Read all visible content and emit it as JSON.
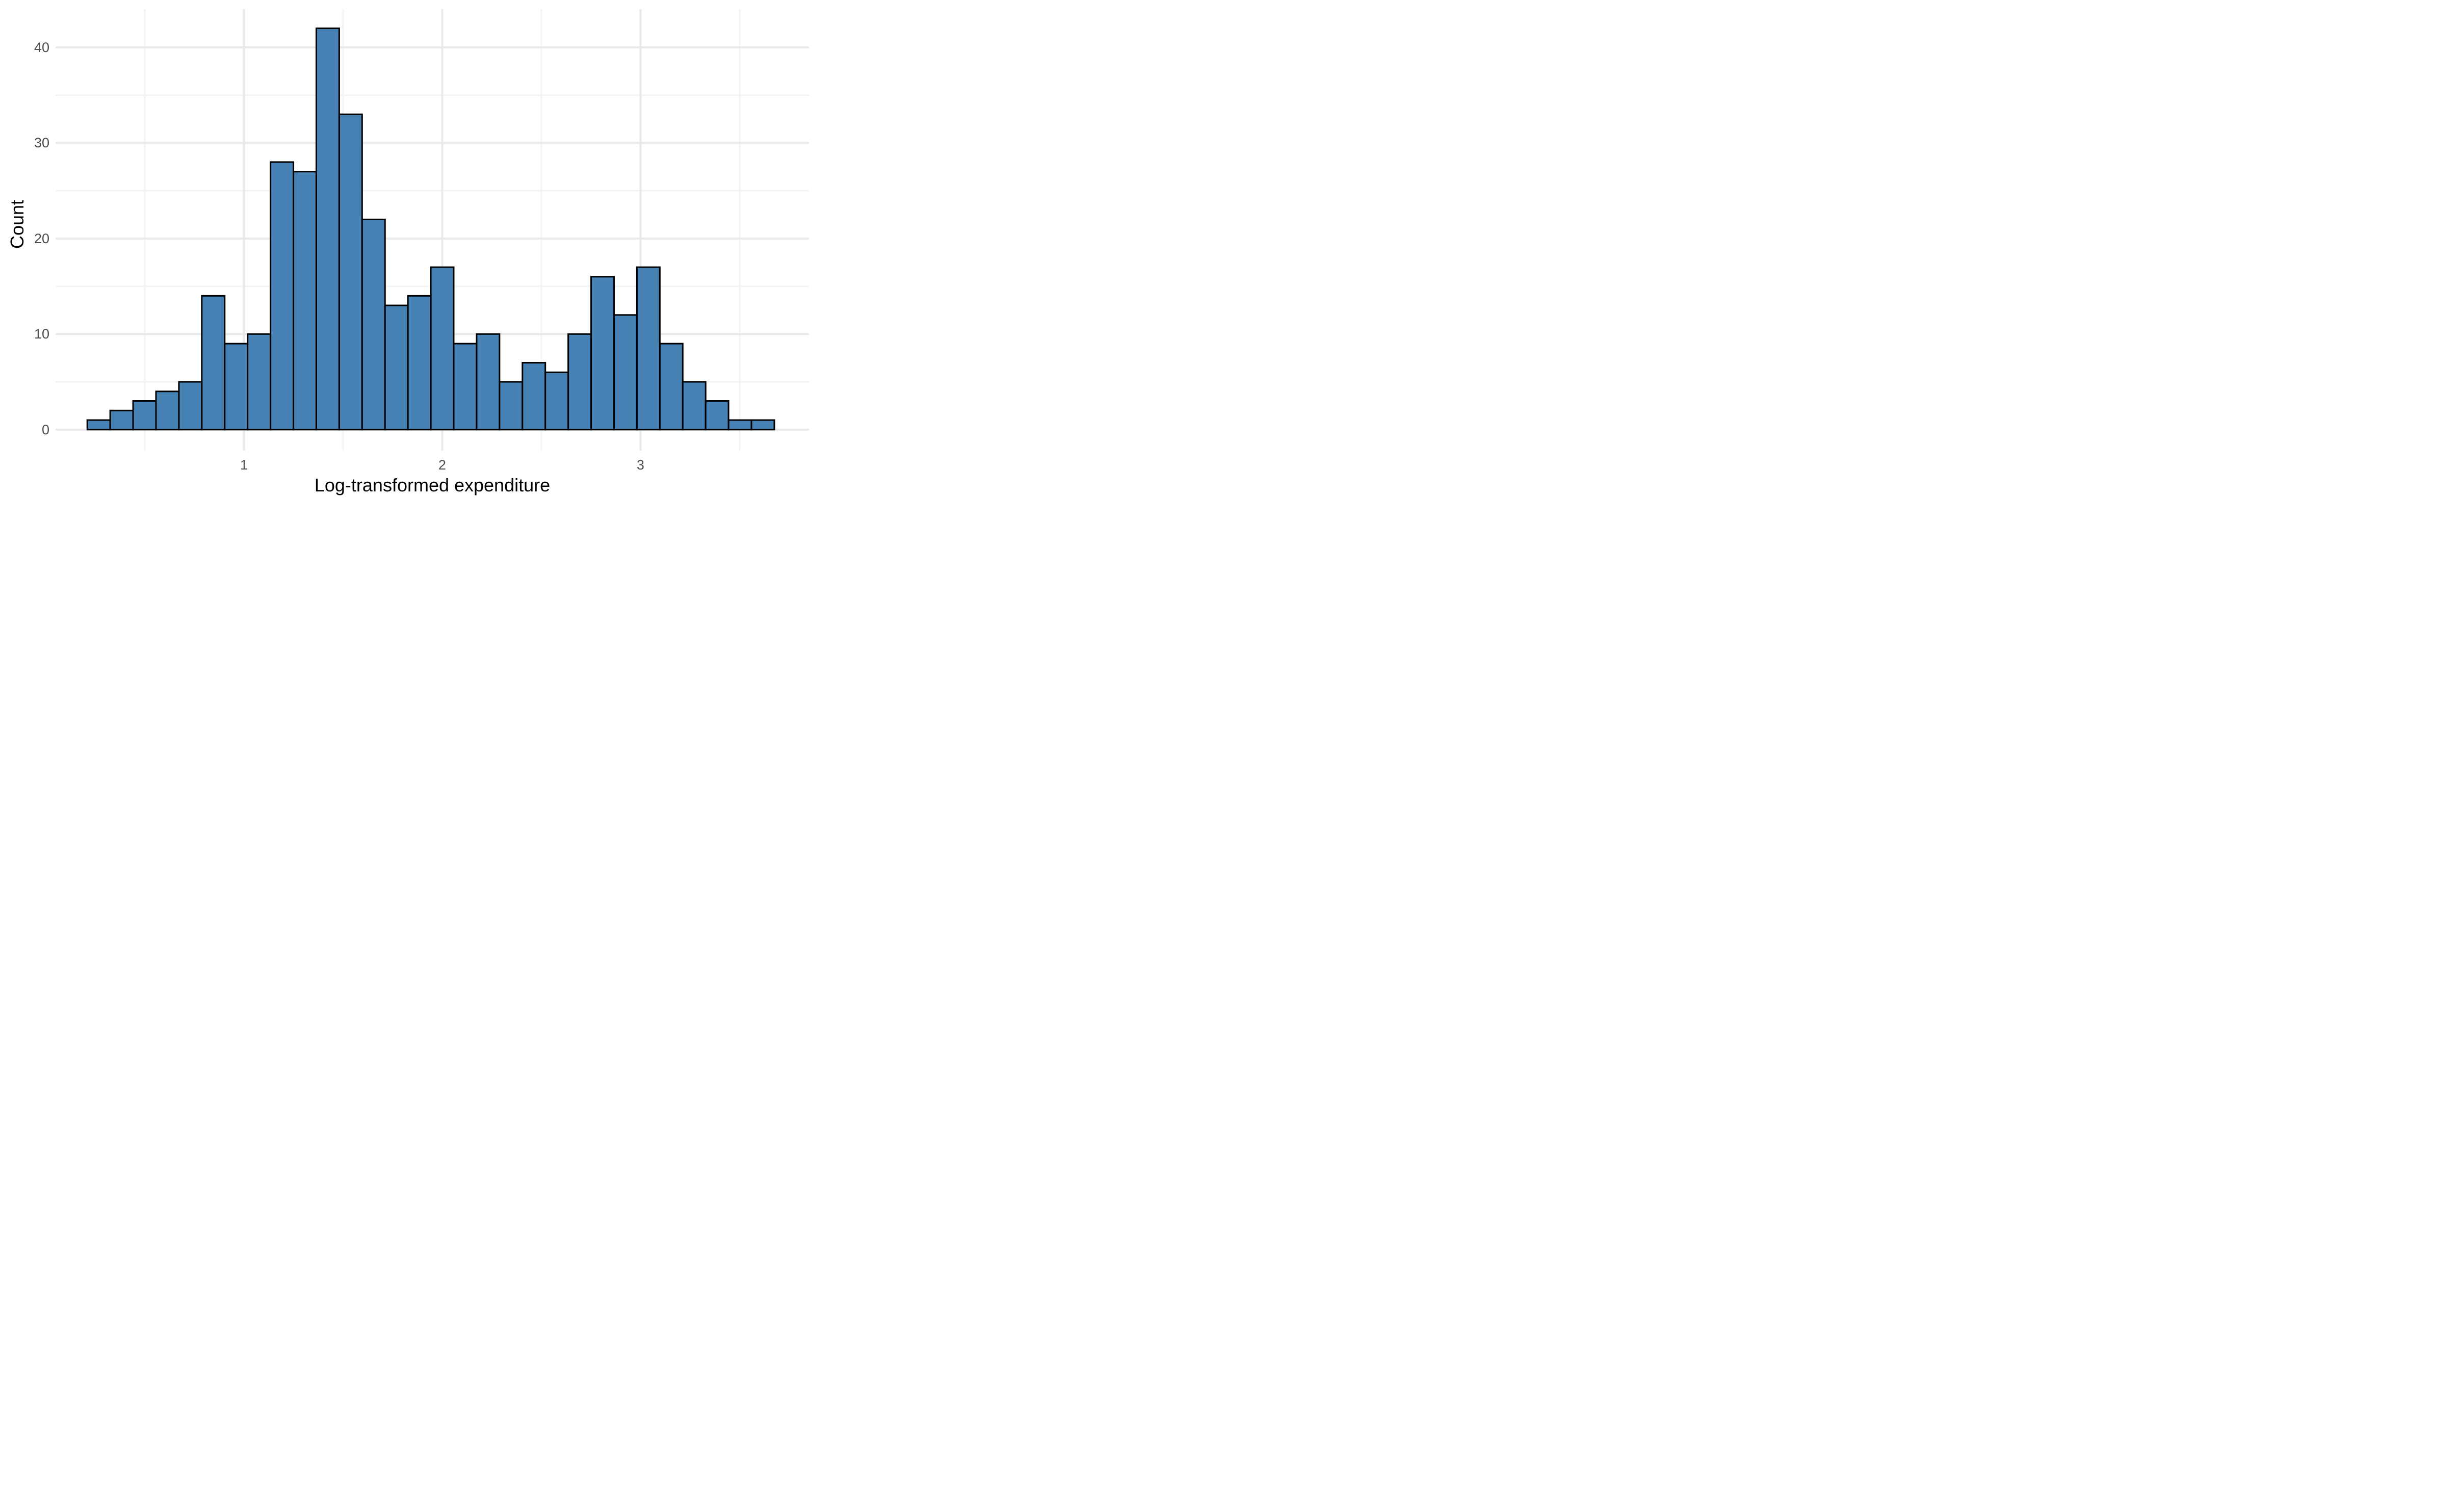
{
  "chart_data": {
    "type": "bar",
    "subtype": "histogram",
    "title": "",
    "xlabel": "Log-transformed expenditure",
    "ylabel": "Count",
    "bins": {
      "start": 0.21,
      "width": 0.1155
    },
    "counts": [
      1,
      2,
      3,
      4,
      5,
      14,
      9,
      10,
      28,
      27,
      42,
      33,
      22,
      13,
      14,
      17,
      9,
      10,
      5,
      7,
      6,
      10,
      16,
      12,
      17,
      9,
      5,
      3,
      1,
      1
    ],
    "total_observations": 355,
    "x_ticks": [
      1,
      2,
      3
    ],
    "x_minor_ticks": [
      0.5,
      1.5,
      2.5,
      3.5
    ],
    "y_ticks": [
      0,
      10,
      20,
      30,
      40
    ],
    "y_minor_ticks": [
      5,
      15,
      25,
      35
    ],
    "xlim": [
      0.05,
      3.85
    ],
    "ylim": [
      -2.2,
      44.0
    ],
    "grid": true,
    "legend_position": "none",
    "colors": {
      "bar_fill": "#4682B4",
      "bar_stroke": "#000000",
      "grid_major": "#E9E9E9",
      "grid_minor": "#F3F3F3",
      "tick_label": "#4D4D4D",
      "axis_title": "#000000",
      "background": "#FFFFFF"
    }
  }
}
